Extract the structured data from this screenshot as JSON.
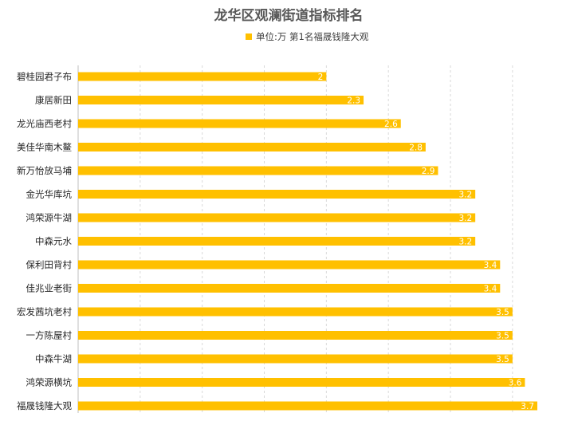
{
  "chart_data": {
    "type": "bar",
    "orientation": "horizontal",
    "title": "龙华区观澜街道指标排名",
    "legend": {
      "label": "单位:万 第1名福晟钱隆大观",
      "color": "#ffc000",
      "position": "top"
    },
    "categories": [
      "碧桂园君子布",
      "康居新田",
      "龙光庙西老村",
      "美佳华南木鳌",
      "新万怡放马埔",
      "金光华库坑",
      "鸿荣源牛湖",
      "中森元水",
      "保利田背村",
      "佳兆业老街",
      "宏发茜坑老村",
      "一方陈屋村",
      "中森牛湖",
      "鸿荣源横坑",
      "福晟钱隆大观"
    ],
    "values": [
      2,
      2.3,
      2.6,
      2.8,
      2.9,
      3.2,
      3.2,
      3.2,
      3.4,
      3.4,
      3.5,
      3.5,
      3.5,
      3.6,
      3.7
    ],
    "xlim": [
      0,
      3.7
    ],
    "bar_color": "#ffc000",
    "grid": true
  }
}
